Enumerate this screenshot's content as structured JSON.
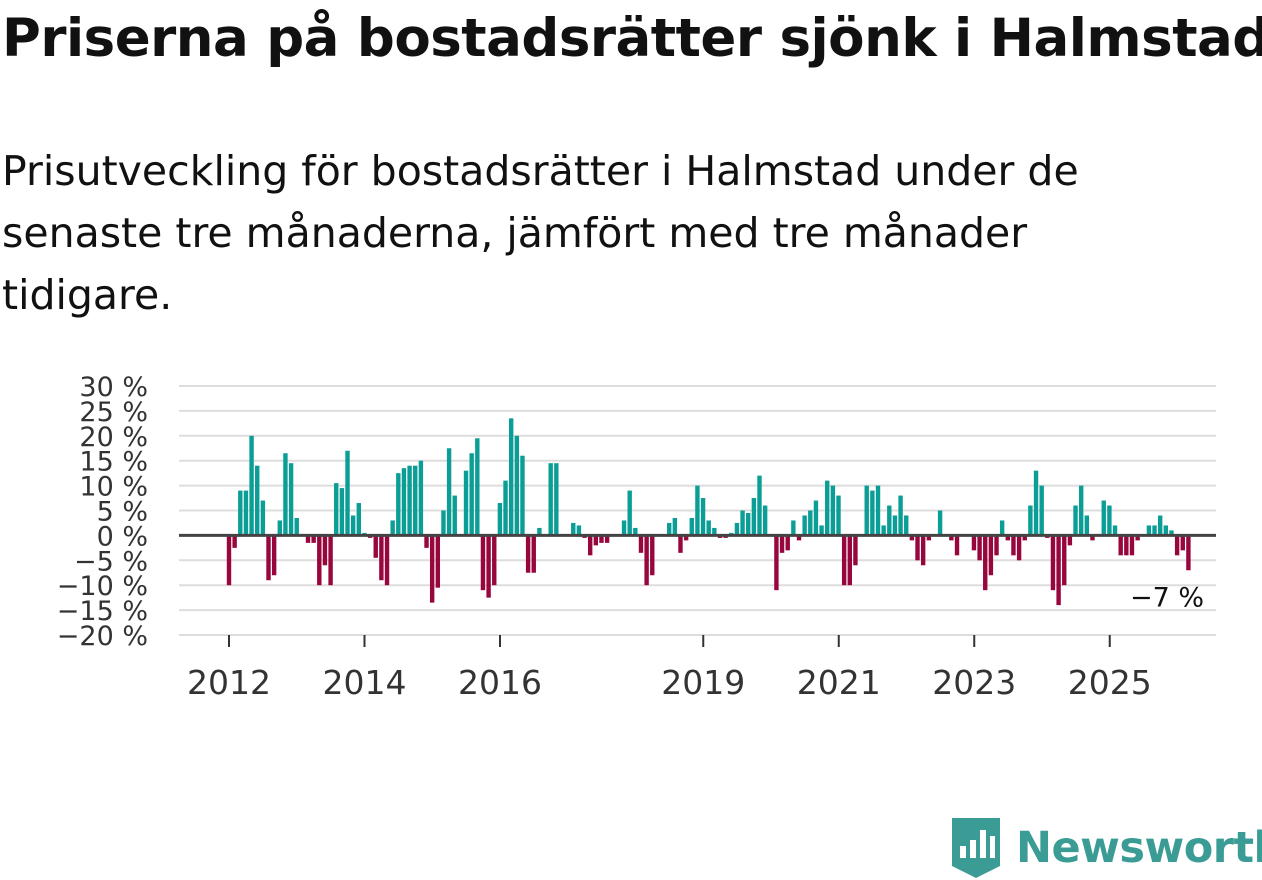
{
  "title": "Priserna på bostadsrätter sjönk i Halmstad",
  "subtitle": "Prisutveckling för bostadsrätter i Halmstad under de senaste tre månaderna, jämfört med tre månader tidigare.",
  "brand": {
    "name": "Newsworthy",
    "color": "#3a9c95",
    "icon": "newsworthy-logo-icon"
  },
  "colors": {
    "positive": "#0b9e97",
    "negative": "#98063e",
    "grid": "#dddddd",
    "zero_line": "#444444"
  },
  "chart_data": {
    "type": "bar",
    "title": "Priserna på bostadsrätter sjönk i Halmstad",
    "xlabel": "",
    "ylabel": "",
    "ylim": [
      -20,
      30
    ],
    "y_ticks": [
      -20,
      -15,
      -10,
      -5,
      0,
      5,
      10,
      15,
      20,
      25,
      30
    ],
    "y_tick_labels": [
      "−20 %",
      "−15 %",
      "−10 %",
      "−5 %",
      "0 %",
      "5 %",
      "10 %",
      "15 %",
      "20 %",
      "25 %",
      "30 %"
    ],
    "x_start": 2012.0,
    "x_step": 0.0833,
    "x_ticks": [
      {
        "value": 2012,
        "label": "2012"
      },
      {
        "value": 2014,
        "label": "2014"
      },
      {
        "value": 2016,
        "label": "2016"
      },
      {
        "value": 2019,
        "label": "2019"
      },
      {
        "value": 2021,
        "label": "2021"
      },
      {
        "value": 2023,
        "label": "2023"
      },
      {
        "value": 2025,
        "label": "2025"
      }
    ],
    "grid": true,
    "end_label": "−7 %",
    "values": [
      -10,
      -2.5,
      9,
      9,
      20,
      14,
      7,
      -9,
      -8,
      3,
      16.5,
      14.5,
      3.5,
      0,
      -1.5,
      -1.5,
      -10,
      -6,
      -10,
      10.5,
      9.5,
      17,
      4,
      6.5,
      0.5,
      -0.5,
      -4.5,
      -9,
      -10,
      3,
      12.5,
      13.5,
      14,
      14,
      15,
      -2.5,
      -13.5,
      -10.5,
      5,
      17.5,
      8,
      0,
      13,
      16.5,
      19.5,
      -11,
      -12.5,
      -10,
      6.5,
      11,
      23.5,
      20,
      16,
      -7.5,
      -7.5,
      1.5,
      0,
      14.5,
      14.5,
      0,
      0,
      2.5,
      2,
      -0.5,
      -4,
      -2,
      -1.5,
      -1.5,
      0,
      0,
      3,
      9,
      1.5,
      -3.5,
      -10,
      -8,
      0,
      0,
      2.5,
      3.5,
      -3.5,
      -1,
      3.5,
      10,
      7.5,
      3,
      1.5,
      -0.5,
      -0.5,
      0.5,
      2.5,
      5,
      4.5,
      7.5,
      12,
      6,
      0,
      -11,
      -3.5,
      -3,
      3,
      -1,
      4,
      5,
      7,
      2,
      11,
      10,
      8,
      -10,
      -10,
      -6,
      0,
      10,
      9,
      10,
      2,
      6,
      4,
      8,
      4,
      -1,
      -5,
      -6,
      -1,
      0,
      5,
      0,
      -1,
      -4,
      0,
      0,
      -3,
      -5,
      -11,
      -8,
      -4,
      3,
      -1,
      -4,
      -5,
      -1,
      6,
      13,
      10,
      -0.5,
      -11,
      -14,
      -10,
      -2,
      6,
      10,
      4,
      -1,
      0,
      7,
      6,
      2,
      -4,
      -4,
      -4,
      -1,
      0,
      2,
      2,
      4,
      2,
      1,
      -4,
      -3,
      -7
    ]
  }
}
